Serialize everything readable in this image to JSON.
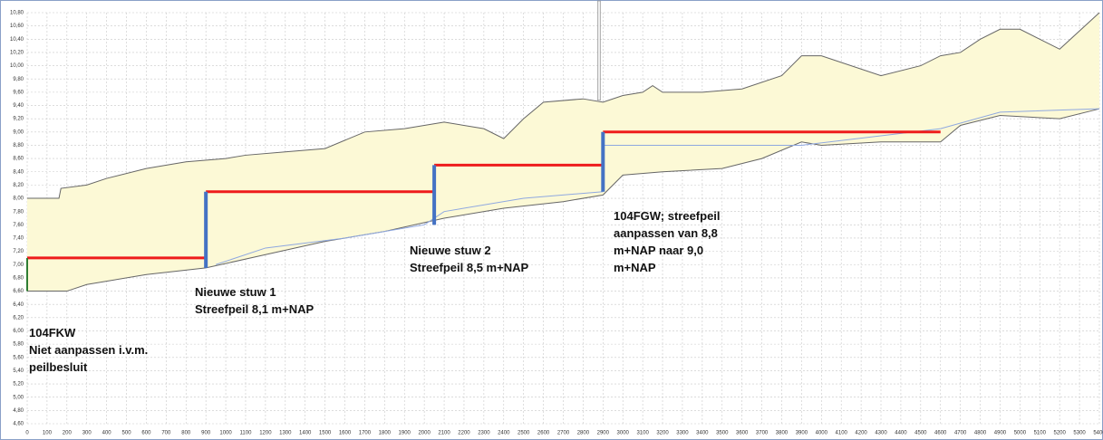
{
  "chart_data": {
    "type": "line",
    "grid": true,
    "area_color": "#fcf9d6",
    "xlim": [
      0,
      5400
    ],
    "ylim": [
      4.6,
      10.8
    ],
    "xticks": [
      0,
      100,
      200,
      300,
      400,
      500,
      600,
      700,
      800,
      900,
      1000,
      1100,
      1200,
      1300,
      1400,
      1500,
      1600,
      1700,
      1800,
      1900,
      2000,
      2100,
      2200,
      2300,
      2400,
      2500,
      2600,
      2700,
      2800,
      2900,
      3000,
      3100,
      3200,
      3300,
      3400,
      3500,
      3600,
      3700,
      3800,
      3900,
      4000,
      4100,
      4200,
      4300,
      4400,
      4500,
      4600,
      4700,
      4800,
      4900,
      5000,
      5100,
      5200,
      5300,
      5400
    ],
    "yticks": [
      {
        "value": 4.6,
        "label": "4,60"
      },
      {
        "value": 4.8,
        "label": "4,80"
      },
      {
        "value": 5,
        "label": "5,00"
      },
      {
        "value": 5.2,
        "label": "5,20"
      },
      {
        "value": 5.4,
        "label": "5,40"
      },
      {
        "value": 5.6,
        "label": "5,60"
      },
      {
        "value": 5.8,
        "label": "5,80"
      },
      {
        "value": 6,
        "label": "6,00"
      },
      {
        "value": 6.2,
        "label": "6,20"
      },
      {
        "value": 6.4,
        "label": "6,40"
      },
      {
        "value": 6.6,
        "label": "6,60"
      },
      {
        "value": 6.8,
        "label": "6,80"
      },
      {
        "value": 7,
        "label": "7,00"
      },
      {
        "value": 7.2,
        "label": "7,20"
      },
      {
        "value": 7.4,
        "label": "7,40"
      },
      {
        "value": 7.6,
        "label": "7,60"
      },
      {
        "value": 7.8,
        "label": "7,80"
      },
      {
        "value": 8,
        "label": "8,00"
      },
      {
        "value": 8.2,
        "label": "8,20"
      },
      {
        "value": 8.4,
        "label": "8,40"
      },
      {
        "value": 8.6,
        "label": "8,60"
      },
      {
        "value": 8.8,
        "label": "8,80"
      },
      {
        "value": 9,
        "label": "9,00"
      },
      {
        "value": 9.2,
        "label": "9,20"
      },
      {
        "value": 9.4,
        "label": "9,40"
      },
      {
        "value": 9.6,
        "label": "9,60"
      },
      {
        "value": 9.8,
        "label": "9,80"
      },
      {
        "value": 10,
        "label": "10,00"
      },
      {
        "value": 10.2,
        "label": "10,20"
      },
      {
        "value": 10.4,
        "label": "10,40"
      },
      {
        "value": 10.6,
        "label": "10,60"
      },
      {
        "value": 10.8,
        "label": "10,80"
      }
    ],
    "series": [
      {
        "color": "#666666",
        "line_width": 1,
        "x": [
          0,
          160,
          170,
          300,
          400,
          600,
          800,
          1000,
          1100,
          1300,
          1500,
          1700,
          1900,
          2100,
          2300,
          2400,
          2500,
          2600,
          2800,
          2900,
          3000,
          3100,
          3150,
          3200,
          3400,
          3600,
          3800,
          3900,
          4000,
          4300,
          4500,
          4600,
          4700,
          4800,
          4900,
          5000,
          5200,
          5400
        ],
        "values": [
          8.0,
          8.0,
          8.15,
          8.2,
          8.3,
          8.45,
          8.55,
          8.6,
          8.65,
          8.7,
          8.75,
          9.0,
          9.05,
          9.15,
          9.05,
          8.9,
          9.2,
          9.45,
          9.5,
          9.45,
          9.55,
          9.6,
          9.7,
          9.6,
          9.6,
          9.65,
          9.85,
          10.15,
          10.15,
          9.85,
          10.0,
          10.15,
          10.2,
          10.4,
          10.55,
          10.55,
          10.25,
          10.8
        ]
      },
      {
        "color": "#666666",
        "line_width": 1,
        "x": [
          0,
          200,
          300,
          600,
          900,
          1200,
          1500,
          1800,
          2100,
          2400,
          2700,
          2900,
          3000,
          3200,
          3500,
          3700,
          3900,
          4000,
          4300,
          4600,
          4700,
          4900,
          5200,
          5400
        ],
        "values": [
          6.6,
          6.6,
          6.7,
          6.85,
          6.95,
          7.15,
          7.35,
          7.5,
          7.7,
          7.85,
          7.95,
          8.05,
          8.35,
          8.4,
          8.45,
          8.6,
          8.85,
          8.8,
          8.85,
          8.85,
          9.1,
          9.25,
          9.2,
          9.35
        ]
      },
      {
        "color": "#8fa8e0",
        "line_width": 1,
        "x": [
          950,
          1200,
          1600,
          2000,
          2100,
          2500,
          2900,
          2900,
          2900,
          3900,
          4600,
          4900,
          5400
        ],
        "values": [
          7.0,
          7.25,
          7.4,
          7.6,
          7.8,
          8.0,
          8.1,
          null,
          8.8,
          8.8,
          9.05,
          9.3,
          9.35
        ]
      },
      {
        "color": "#ee1c1c",
        "line_width": 3,
        "x": [
          0,
          900,
          900,
          900,
          2050,
          2050,
          2050,
          2900,
          2900,
          2900,
          4600
        ],
        "values": [
          7.1,
          7.1,
          null,
          8.1,
          8.1,
          null,
          8.5,
          8.5,
          null,
          9.0,
          9.0
        ]
      },
      {
        "color": "#4472c4",
        "line_width": 4,
        "x": [
          900,
          900,
          900,
          2050,
          2050,
          2050,
          2900,
          2900
        ],
        "values": [
          6.95,
          8.1,
          null,
          7.6,
          8.5,
          null,
          8.1,
          9.0
        ]
      },
      {
        "color": "#2e7d32",
        "line_width": 2,
        "x": [
          0,
          0
        ],
        "values": [
          6.6,
          7.1
        ]
      }
    ],
    "annotations": [
      {
        "lines": [
          "104FKW",
          "Niet aanpassen i.v.m.",
          "peilbesluit"
        ]
      },
      {
        "lines": [
          "Nieuwe stuw 1",
          "Streefpeil 8,1 m+NAP"
        ]
      },
      {
        "lines": [
          "Nieuwe stuw 2",
          "Streefpeil 8,5 m+NAP"
        ]
      },
      {
        "lines": [
          "104FGW; streefpeil",
          "aanpassen van 8,8",
          "m+NAP naar 9,0",
          "m+NAP"
        ]
      }
    ]
  }
}
